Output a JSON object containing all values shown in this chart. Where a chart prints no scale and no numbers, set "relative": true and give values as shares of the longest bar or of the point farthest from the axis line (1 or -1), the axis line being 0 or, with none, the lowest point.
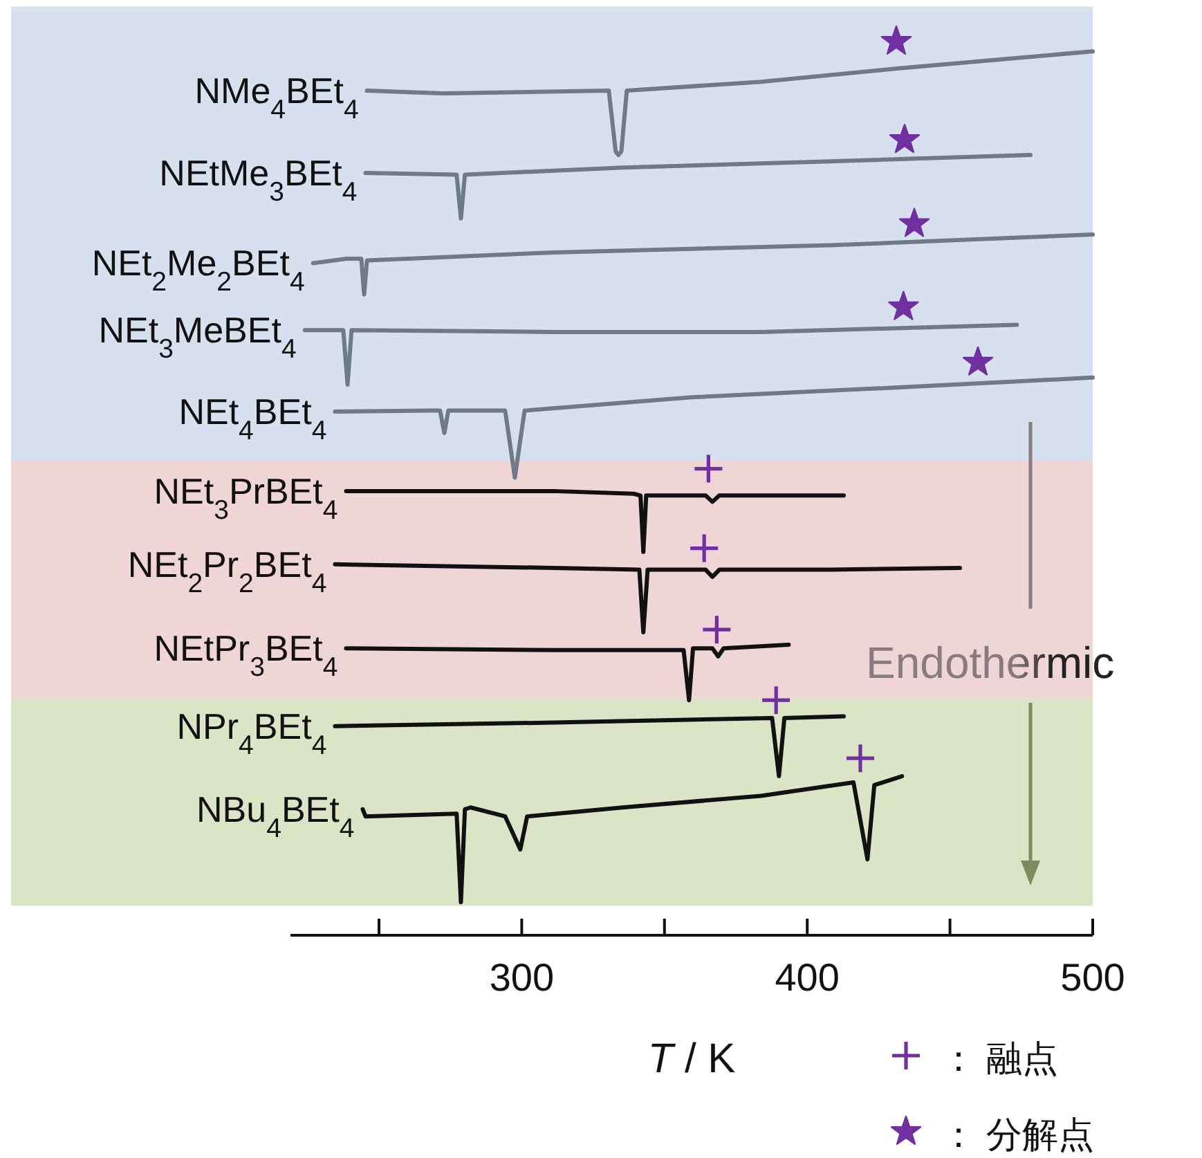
{
  "chart_data": {
    "type": "line",
    "relative": true,
    "xlabel": "T / K",
    "xlim": [
      219,
      500
    ],
    "xticks": [
      {
        "value": 250,
        "label": null
      },
      300,
      {
        "value": 350,
        "label": null
      },
      400,
      {
        "value": 450,
        "label": null
      },
      500
    ],
    "grid": false,
    "legend": "bottom right",
    "tick_labels": "x",
    "bands": [
      {
        "axis": "y",
        "from": 0.531,
        "to": 1.039,
        "color": "#d6e0ee"
      },
      {
        "axis": "y",
        "from": 0.265,
        "to": 0.531,
        "color": "#efd5d6"
      },
      {
        "axis": "y",
        "from": 0.033,
        "to": 0.265,
        "color": "#dbe5c5"
      }
    ],
    "annotations": [
      "Endothermic"
    ],
    "series": [
      {
        "name": "NMe$_{4}$BEt$_{4}$",
        "color": "#6e7a87",
        "x": [
          245.8,
          272.4,
          330.5,
          332.9,
          333.9,
          334.9,
          336.8,
          383.8,
          432.2,
          500.0
        ],
        "values": [
          0.945,
          0.942,
          0.945,
          0.877,
          0.873,
          0.877,
          0.945,
          0.955,
          0.97,
          0.989
        ]
      },
      {
        "name": "NEtMe$_{3}$BEt$_{4}$",
        "color": "#6e7a87",
        "x": [
          245.3,
          277.2,
          278.7,
          280.1,
          335.4,
          408.0,
          478.2
        ],
        "values": [
          0.853,
          0.851,
          0.802,
          0.851,
          0.859,
          0.866,
          0.873
        ]
      },
      {
        "name": "NEt$_{2}$Me$_{2}$BEt$_{4}$",
        "color": "#6e7a87",
        "x": [
          226.9,
          238.5,
          243.8,
          244.8,
          245.8,
          311.1,
          408.0,
          500.0
        ],
        "values": [
          0.752,
          0.757,
          0.757,
          0.717,
          0.755,
          0.764,
          0.772,
          0.784
        ]
      },
      {
        "name": "NEt$_{3}$MeBEt$_{4}$",
        "color": "#6e7a87",
        "x": [
          224.0,
          237.5,
          239.0,
          240.4,
          311.1,
          383.8,
          473.4
        ],
        "values": [
          0.677,
          0.677,
          0.616,
          0.677,
          0.675,
          0.675,
          0.683
        ]
      },
      {
        "name": "NEt$_{4}$BEt$_{4}$",
        "color": "#6e7a87",
        "x": [
          234.6,
          267.6,
          271.4,
          272.9,
          274.3,
          294.2,
          297.6,
          301.0,
          359.6,
          432.2,
          500.0
        ],
        "values": [
          0.586,
          0.587,
          0.587,
          0.562,
          0.587,
          0.587,
          0.512,
          0.587,
          0.602,
          0.613,
          0.624
        ]
      },
      {
        "name": "NEt$_{3}$PrBEt$_{4}$",
        "color": "#111111",
        "x": [
          238.5,
          311.1,
          339.2,
          341.6,
          342.6,
          343.6,
          364.4,
          366.8,
          369.2,
          412.8
        ],
        "values": [
          0.497,
          0.497,
          0.494,
          0.492,
          0.429,
          0.492,
          0.492,
          0.485,
          0.492,
          0.492
        ]
      },
      {
        "name": "NEt$_{2}$Pr$_{2}$BEt$_{4}$",
        "color": "#111111",
        "x": [
          234.6,
          311.1,
          341.2,
          342.6,
          344.1,
          364.4,
          366.8,
          369.2,
          408.0,
          453.5
        ],
        "values": [
          0.415,
          0.411,
          0.409,
          0.339,
          0.409,
          0.409,
          0.401,
          0.409,
          0.409,
          0.411
        ]
      },
      {
        "name": "NEtPr$_{3}$BEt$_{4}$",
        "color": "#111111",
        "x": [
          238.5,
          311.1,
          356.7,
          358.6,
          360.0,
          366.8,
          368.8,
          370.7,
          393.5
        ],
        "values": [
          0.321,
          0.319,
          0.319,
          0.263,
          0.321,
          0.321,
          0.312,
          0.321,
          0.325
        ]
      },
      {
        "name": "NPr$_{4}$BEt$_{4}$",
        "color": "#111111",
        "x": [
          234.6,
          311.1,
          387.7,
          390.1,
          392.0,
          412.8
        ],
        "values": [
          0.234,
          0.238,
          0.243,
          0.178,
          0.243,
          0.245
        ]
      },
      {
        "name": "NBu$_{4}$BEt$_{4}$",
        "color": "#111111",
        "x": [
          244.3,
          245.3,
          277.2,
          278.7,
          280.1,
          282.1,
          294.2,
          299.5,
          301.9,
          335.4,
          383.8,
          416.2,
          421.1,
          423.5,
          433.2
        ],
        "values": [
          0.141,
          0.133,
          0.136,
          0.037,
          0.141,
          0.143,
          0.133,
          0.096,
          0.133,
          0.143,
          0.156,
          0.171,
          0.085,
          0.168,
          0.178
        ]
      },
      {
        "name": "： 融点",
        "type": "scatter",
        "marker": "cross",
        "color": "#7030a0",
        "x": [
          365.4,
          363.9,
          368.3,
          389.1,
          418.6
        ],
        "values": [
          0.522,
          0.433,
          0.342,
          0.263,
          0.198
        ]
      },
      {
        "name": "： 分解点",
        "type": "scatter",
        "marker": "star",
        "color": "#7030a0",
        "x": [
          431.2,
          434.1,
          437.5,
          433.7,
          459.8
        ],
        "values": [
          1.0,
          0.89,
          0.796,
          0.703,
          0.641
        ]
      }
    ]
  }
}
